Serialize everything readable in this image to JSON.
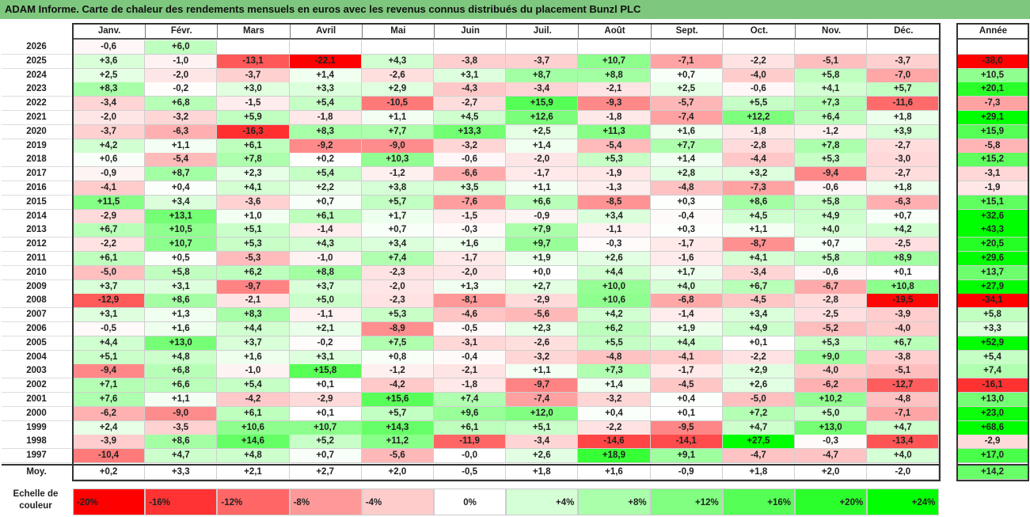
{
  "title": "ADAM Informe. Carte de chaleur des rendements mensuels en euros avec les revenus connus distribués du placement Bunzl PLC",
  "chart_data": {
    "type": "heatmap",
    "columns": [
      "Janv.",
      "Févr.",
      "Mars",
      "Avril",
      "Mai",
      "Juin",
      "Juil.",
      "Août",
      "Sept.",
      "Oct.",
      "Nov.",
      "Déc."
    ],
    "year_header": "Année",
    "rows": [
      {
        "year": "2026",
        "months": [
          "-0,6",
          "+6,0",
          "",
          "",
          "",
          "",
          "",
          "",
          "",
          "",
          "",
          ""
        ],
        "annual": ""
      },
      {
        "year": "2025",
        "months": [
          "+3,6",
          "-1,0",
          "-13,1",
          "-22,1",
          "+4,3",
          "-3,8",
          "-3,7",
          "+10,7",
          "-7,1",
          "-2,2",
          "-5,1",
          "-3,7"
        ],
        "annual": "-38,0"
      },
      {
        "year": "2024",
        "months": [
          "+2,5",
          "-2,0",
          "-3,7",
          "+1,4",
          "-2,6",
          "+3,1",
          "+8,7",
          "+8,8",
          "+0,7",
          "-4,0",
          "+5,8",
          "-7,0"
        ],
        "annual": "+10,5"
      },
      {
        "year": "2023",
        "months": [
          "+8,3",
          "-0,2",
          "+3,0",
          "+3,3",
          "+2,9",
          "-4,3",
          "-3,4",
          "-2,1",
          "+2,5",
          "-0,6",
          "+4,1",
          "+5,7"
        ],
        "annual": "+20,1"
      },
      {
        "year": "2022",
        "months": [
          "-3,4",
          "+6,8",
          "-1,5",
          "+5,4",
          "-10,5",
          "-2,7",
          "+15,9",
          "-9,3",
          "-5,7",
          "+5,5",
          "+7,3",
          "-11,6"
        ],
        "annual": "-7,3"
      },
      {
        "year": "2021",
        "months": [
          "-2,0",
          "-3,2",
          "+5,9",
          "-1,8",
          "+1,1",
          "+4,5",
          "+12,6",
          "-1,8",
          "-7,4",
          "+12,2",
          "+6,4",
          "+1,8"
        ],
        "annual": "+29,1"
      },
      {
        "year": "2020",
        "months": [
          "-3,7",
          "-6,3",
          "-16,3",
          "+8,3",
          "+7,7",
          "+13,3",
          "+2,5",
          "+11,3",
          "+1,6",
          "-1,8",
          "-1,2",
          "+3,9"
        ],
        "annual": "+15,9"
      },
      {
        "year": "2019",
        "months": [
          "+4,2",
          "+1,1",
          "+6,1",
          "-9,2",
          "-9,0",
          "-3,2",
          "+1,4",
          "-5,4",
          "+7,7",
          "-2,8",
          "+7,8",
          "-2,7"
        ],
        "annual": "-5,8"
      },
      {
        "year": "2018",
        "months": [
          "+0,6",
          "-5,4",
          "+7,8",
          "+0,2",
          "+10,3",
          "-0,6",
          "-2,0",
          "+5,3",
          "+1,4",
          "-4,4",
          "+5,3",
          "-3,0"
        ],
        "annual": "+15,2"
      },
      {
        "year": "2017",
        "months": [
          "-0,9",
          "+8,7",
          "+2,3",
          "+5,4",
          "-1,2",
          "-6,6",
          "-1,7",
          "-1,9",
          "+2,8",
          "+3,2",
          "-9,4",
          "-2,7"
        ],
        "annual": "-3,1"
      },
      {
        "year": "2016",
        "months": [
          "-4,1",
          "+0,4",
          "+4,1",
          "+2,2",
          "+3,8",
          "+3,5",
          "+1,1",
          "-1,3",
          "-4,8",
          "-7,3",
          "-0,6",
          "+1,8"
        ],
        "annual": "-1,9"
      },
      {
        "year": "2015",
        "months": [
          "+11,5",
          "+3,4",
          "-3,6",
          "+0,7",
          "+5,7",
          "-7,6",
          "+6,6",
          "-8,5",
          "+0,3",
          "+8,6",
          "+5,8",
          "-6,3"
        ],
        "annual": "+15,1"
      },
      {
        "year": "2014",
        "months": [
          "-2,9",
          "+13,1",
          "+1,0",
          "+6,1",
          "+1,7",
          "-1,5",
          "-0,9",
          "+3,4",
          "-0,4",
          "+4,5",
          "+4,9",
          "+0,7"
        ],
        "annual": "+32,6"
      },
      {
        "year": "2013",
        "months": [
          "+6,7",
          "+10,5",
          "+5,1",
          "-1,4",
          "+0,7",
          "-0,3",
          "+7,9",
          "-1,1",
          "+0,3",
          "+1,1",
          "+4,0",
          "+4,2"
        ],
        "annual": "+43,3"
      },
      {
        "year": "2012",
        "months": [
          "-2,2",
          "+10,7",
          "+5,3",
          "+4,3",
          "+3,4",
          "+1,6",
          "+9,7",
          "-0,3",
          "-1,7",
          "-8,7",
          "+0,7",
          "-2,5"
        ],
        "annual": "+20,5"
      },
      {
        "year": "2011",
        "months": [
          "+6,1",
          "+0,5",
          "-5,3",
          "-1,0",
          "+7,4",
          "-1,7",
          "+1,9",
          "+2,6",
          "-1,6",
          "+4,1",
          "+5,8",
          "+8,9"
        ],
        "annual": "+29,6"
      },
      {
        "year": "2010",
        "months": [
          "-5,0",
          "+5,8",
          "+6,2",
          "+8,8",
          "-2,3",
          "-2,0",
          "+0,0",
          "+4,4",
          "+1,7",
          "-3,4",
          "-0,6",
          "+0,1"
        ],
        "annual": "+13,7"
      },
      {
        "year": "2009",
        "months": [
          "+3,7",
          "+3,1",
          "-9,7",
          "+3,7",
          "-2,0",
          "+1,3",
          "+2,7",
          "+10,0",
          "+4,0",
          "+6,7",
          "-6,7",
          "+10,8"
        ],
        "annual": "+27,9"
      },
      {
        "year": "2008",
        "months": [
          "-12,9",
          "+8,6",
          "-2,1",
          "+5,0",
          "-2,3",
          "-8,1",
          "-2,9",
          "+10,6",
          "-6,8",
          "-4,5",
          "-2,8",
          "-19,5"
        ],
        "annual": "-34,1"
      },
      {
        "year": "2007",
        "months": [
          "+3,1",
          "+1,3",
          "+8,3",
          "-1,1",
          "+5,3",
          "-4,6",
          "-5,6",
          "+4,2",
          "-1,4",
          "+3,4",
          "-2,5",
          "-3,9"
        ],
        "annual": "+5,8"
      },
      {
        "year": "2006",
        "months": [
          "-0,5",
          "+1,6",
          "+4,4",
          "+2,1",
          "-8,9",
          "-0,5",
          "+2,3",
          "+6,2",
          "+1,9",
          "+4,9",
          "-5,2",
          "-4,0"
        ],
        "annual": "+3,3"
      },
      {
        "year": "2005",
        "months": [
          "+4,4",
          "+13,0",
          "+3,7",
          "-0,2",
          "+7,5",
          "-3,1",
          "-2,6",
          "+5,5",
          "+4,4",
          "+0,1",
          "+5,3",
          "+6,7"
        ],
        "annual": "+52,9"
      },
      {
        "year": "2004",
        "months": [
          "+5,1",
          "+4,8",
          "+1,6",
          "+3,1",
          "+0,8",
          "-0,4",
          "-3,2",
          "-4,8",
          "-4,1",
          "-2,2",
          "+9,0",
          "-3,8"
        ],
        "annual": "+5,4"
      },
      {
        "year": "2003",
        "months": [
          "-9,4",
          "+6,8",
          "-1,0",
          "+15,8",
          "-1,2",
          "-2,1",
          "+1,1",
          "+7,3",
          "-1,7",
          "+2,9",
          "-4,0",
          "-5,1"
        ],
        "annual": "+7,4"
      },
      {
        "year": "2002",
        "months": [
          "+7,1",
          "+6,6",
          "+5,4",
          "+0,1",
          "-4,2",
          "-1,8",
          "-9,7",
          "+1,4",
          "-4,5",
          "+2,6",
          "-6,2",
          "-12,7"
        ],
        "annual": "-16,1"
      },
      {
        "year": "2001",
        "months": [
          "+7,6",
          "+1,1",
          "-4,2",
          "-2,9",
          "+15,6",
          "+7,4",
          "-7,4",
          "-3,2",
          "+0,4",
          "-5,0",
          "+10,2",
          "-4,8"
        ],
        "annual": "+13,0"
      },
      {
        "year": "2000",
        "months": [
          "-6,2",
          "-9,0",
          "+6,1",
          "+0,1",
          "+5,7",
          "+9,6",
          "+12,0",
          "+0,4",
          "+0,1",
          "+7,2",
          "+5,0",
          "-7,1"
        ],
        "annual": "+23,0"
      },
      {
        "year": "1999",
        "months": [
          "+2,4",
          "-3,5",
          "+10,6",
          "+10,7",
          "+14,3",
          "+6,1",
          "+5,1",
          "-2,2",
          "-9,5",
          "+4,7",
          "+13,0",
          "+4,7"
        ],
        "annual": "+68,6"
      },
      {
        "year": "1998",
        "months": [
          "-3,9",
          "+8,6",
          "+14,6",
          "+5,2",
          "+11,2",
          "-11,9",
          "-3,4",
          "-14,6",
          "-14,1",
          "+27,5",
          "-0,3",
          "-13,4"
        ],
        "annual": "-2,9"
      },
      {
        "year": "1997",
        "months": [
          "-10,4",
          "+4,7",
          "+4,8",
          "+0,7",
          "-5,6",
          "-0,0",
          "+2,6",
          "+18,9",
          "+9,1",
          "-4,7",
          "-4,7",
          "+4,0"
        ],
        "annual": "+17,0"
      }
    ],
    "average": {
      "label": "Moy.",
      "months": [
        "+0,2",
        "+3,3",
        "+2,1",
        "+2,7",
        "+2,0",
        "-0,5",
        "+1,8",
        "+1,6",
        "-0,9",
        "+1,8",
        "+2,0",
        "-2,0"
      ],
      "annual": "+14,2"
    },
    "scale": {
      "label": "Echelle de couleur",
      "stops": [
        "-20%",
        "-16%",
        "-12%",
        "-8%",
        "-4%",
        "0%",
        "+4%",
        "+8%",
        "+12%",
        "+16%",
        "+20%",
        "+24%"
      ],
      "values": [
        -20,
        -16,
        -12,
        -8,
        -4,
        0,
        4,
        8,
        12,
        16,
        20,
        24
      ]
    }
  }
}
